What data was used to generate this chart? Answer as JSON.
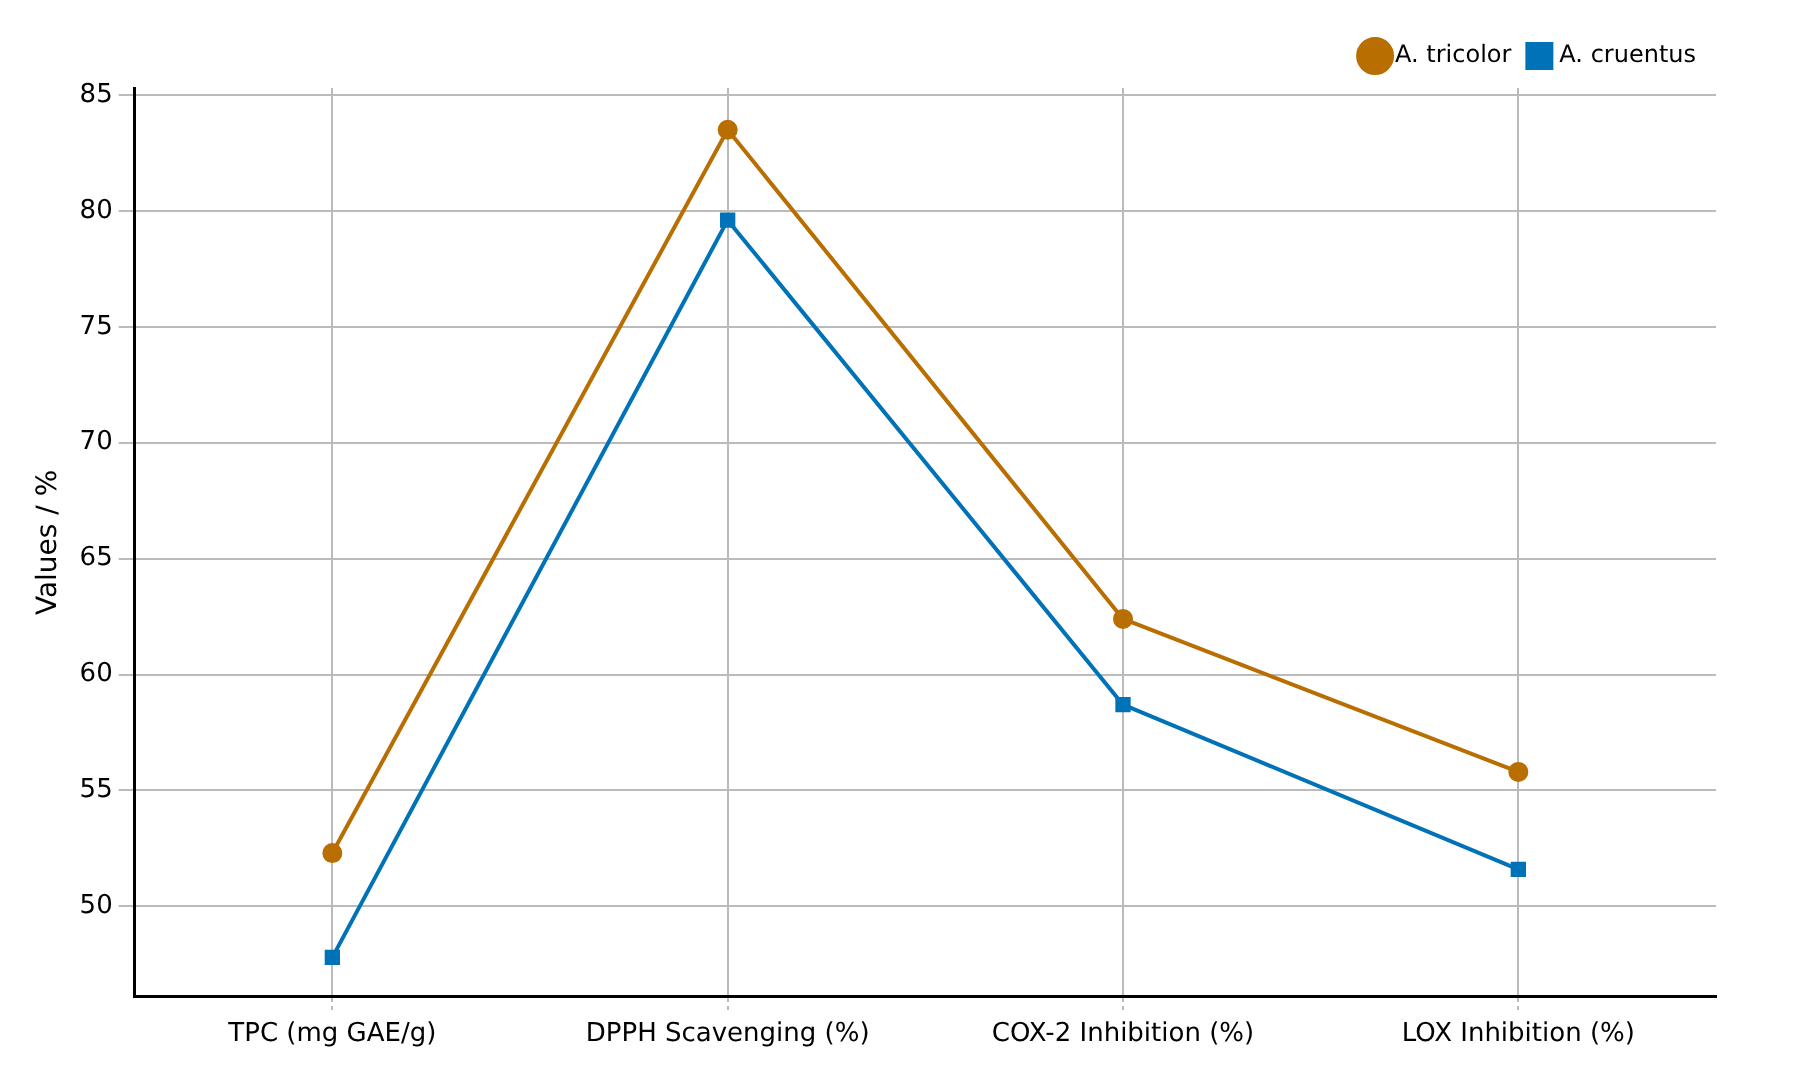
{
  "chart_data": {
    "type": "line",
    "ylabel": "Values / %",
    "categories": [
      "TPC (mg GAE/g)",
      "DPPH Scavenging (%)",
      "COX-2 Inhibition (%)",
      "LOX Inhibition (%)"
    ],
    "series": [
      {
        "name": "A. tricolor",
        "color": "#b86e00",
        "marker": "circle",
        "values": [
          52.3,
          83.5,
          62.4,
          55.8
        ]
      },
      {
        "name": "A. cruentus",
        "color": "#0072b8",
        "marker": "square",
        "values": [
          47.8,
          79.6,
          58.7,
          51.6
        ]
      }
    ],
    "ylim": [
      46.1,
      85.3
    ],
    "yticks": [
      50,
      55,
      60,
      65,
      70,
      75,
      80,
      85
    ],
    "grid": true,
    "legend": "top right",
    "line_style": "solid"
  }
}
